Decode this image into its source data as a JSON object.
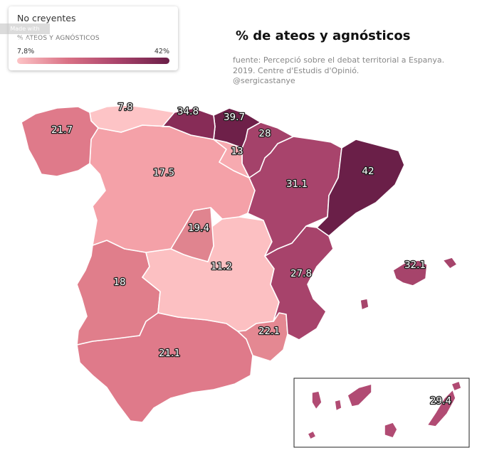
{
  "legend": {
    "title": "No creyentes",
    "subtitle": "% ATEOS Y AGNÓSTICOS",
    "min_label": "7,8%",
    "max_label": "42%",
    "min": 7.8,
    "max": 42,
    "gradient": [
      "#fdc4c6",
      "#d97185",
      "#a8426a",
      "#6a1f48"
    ]
  },
  "watermark": "Made with Flourish",
  "title": "% de ateos y agnósticos",
  "source_lines": [
    "fuente: Percepció sobre el debat territorial a Espanya.",
    "2019. Centre d'Estudis d'Opinió.",
    "@sergicastanye"
  ],
  "regions": [
    {
      "name": "Galicia",
      "value": 21.7,
      "label": "21.7",
      "color": "#df7a8a"
    },
    {
      "name": "Asturias",
      "value": 7.8,
      "label": "7.8",
      "color": "#fdc4c6"
    },
    {
      "name": "Cantabria",
      "value": 34.8,
      "label": "34.8",
      "color": "#872c57"
    },
    {
      "name": "País Vasco",
      "value": 39.7,
      "label": "39.7",
      "color": "#6e2049"
    },
    {
      "name": "Navarra",
      "value": 28,
      "label": "28",
      "color": "#a4426a"
    },
    {
      "name": "La Rioja",
      "value": 13,
      "label": "13",
      "color": "#f7aab0"
    },
    {
      "name": "Aragón",
      "value": 31.1,
      "label": "31.1",
      "color": "#a8446c"
    },
    {
      "name": "Cataluña",
      "value": 42,
      "label": "42",
      "color": "#6a1f48"
    },
    {
      "name": "Castilla y León",
      "value": 17.5,
      "label": "17.5",
      "color": "#f4a1a8"
    },
    {
      "name": "Madrid",
      "value": 19.4,
      "label": "19.4",
      "color": "#e0848f"
    },
    {
      "name": "Castilla-La Mancha",
      "value": 11.2,
      "label": "11.2",
      "color": "#fcc0c2"
    },
    {
      "name": "Extremadura",
      "value": 18,
      "label": "18",
      "color": "#e07e8b"
    },
    {
      "name": "Comunidad Valenciana",
      "value": 27.8,
      "label": "27.8",
      "color": "#a7436b"
    },
    {
      "name": "Región de Murcia",
      "value": 22.1,
      "label": "22.1",
      "color": "#e48892"
    },
    {
      "name": "Andalucía",
      "value": 21.1,
      "label": "21.1",
      "color": "#df7a8a"
    },
    {
      "name": "Illes Balears",
      "value": 32.1,
      "label": "32.1",
      "color": "#a6446b"
    },
    {
      "name": "Canarias",
      "value": 29.4,
      "label": "29.4",
      "color": "#b14b73"
    }
  ]
}
